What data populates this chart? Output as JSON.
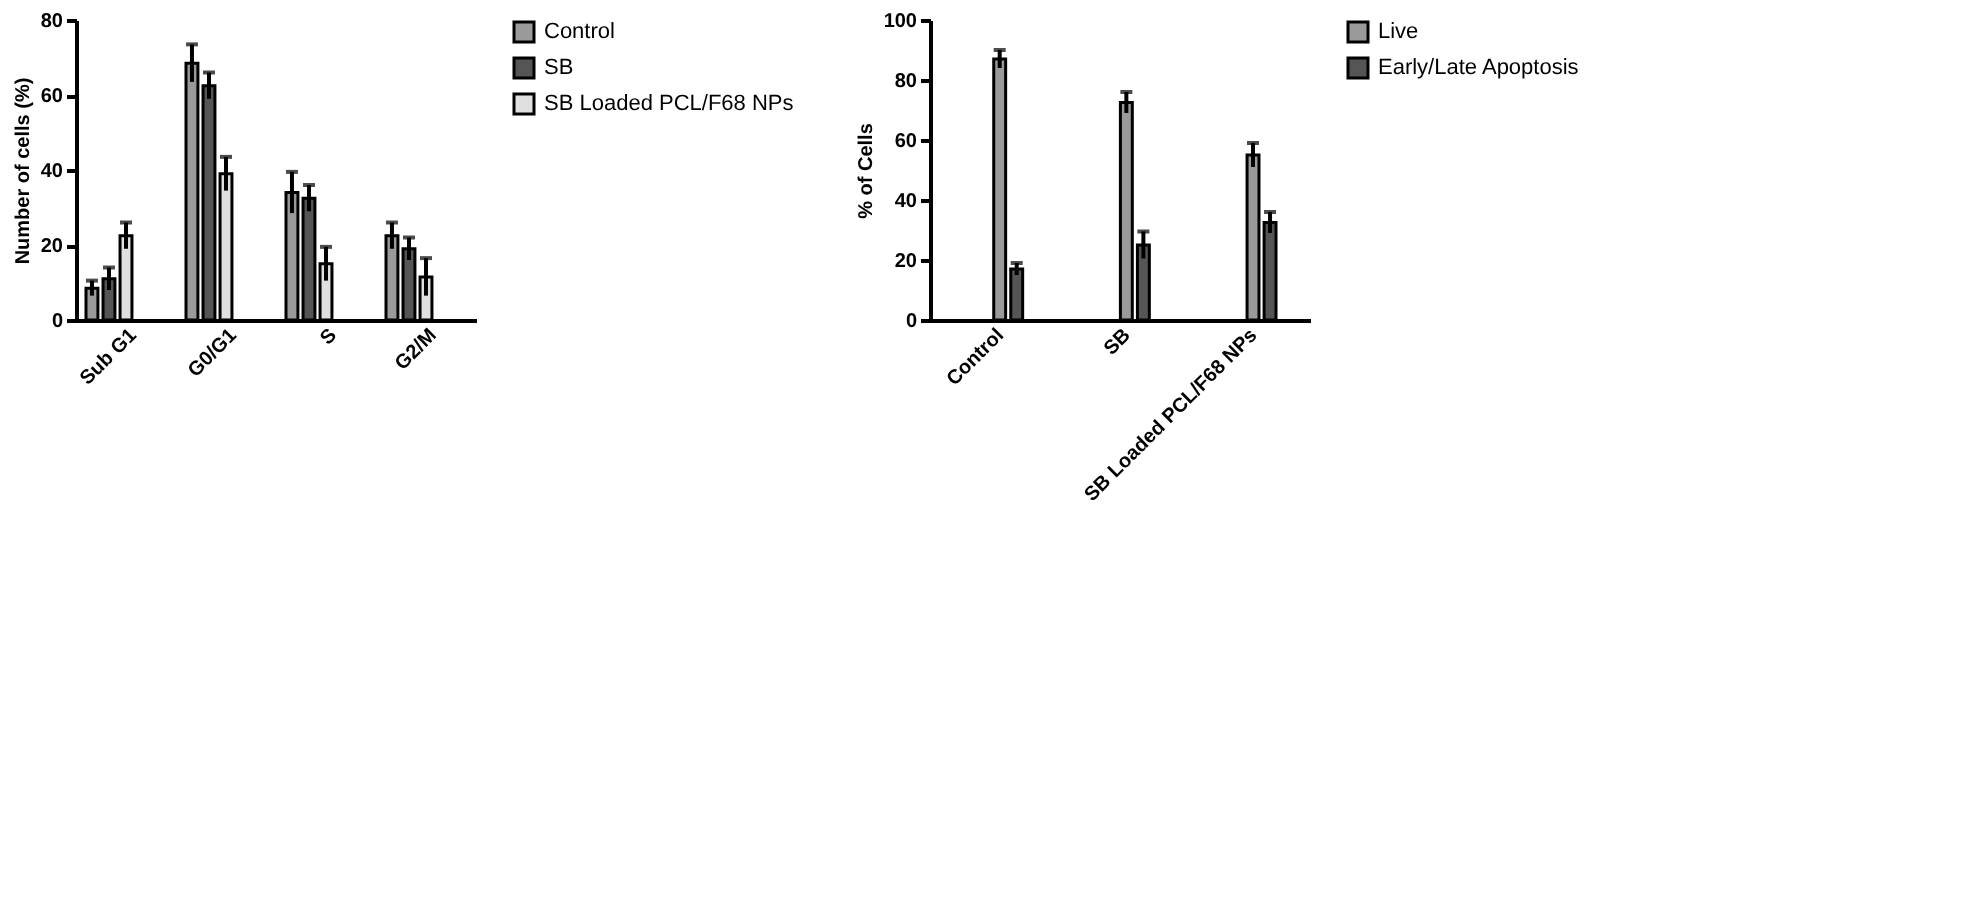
{
  "chart_data": [
    {
      "type": "bar",
      "ylabel": "Number of cells  (%)",
      "categories": [
        "Sub G1",
        "G0/G1",
        "S",
        "G2/M"
      ],
      "ylim": [
        0,
        80
      ],
      "yticks": [
        0,
        20,
        40,
        60,
        80
      ],
      "grid": false,
      "legend": "right",
      "series": [
        {
          "name": "Control",
          "color": "#9a9a9a",
          "values": [
            8.5,
            68.5,
            34,
            22.5
          ],
          "errors": [
            2,
            5,
            5.5,
            3.5
          ]
        },
        {
          "name": "SB",
          "color": "#555555",
          "values": [
            11,
            62.5,
            32.5,
            19
          ],
          "errors": [
            3,
            3.5,
            3.5,
            3
          ]
        },
        {
          "name": "SB Loaded PCL/F68 NPs",
          "color": "#e0e0e0",
          "values": [
            22.5,
            39,
            15,
            11.5
          ],
          "errors": [
            3.5,
            4.5,
            4.5,
            5
          ]
        }
      ]
    },
    {
      "type": "bar",
      "ylabel": "% of Cells",
      "categories": [
        "Control",
        "SB",
        "SB Loaded PCL/F68 NPs"
      ],
      "ylim": [
        0,
        100
      ],
      "yticks": [
        0,
        20,
        40,
        60,
        80,
        100
      ],
      "grid": false,
      "legend": "right",
      "series": [
        {
          "name": "Live",
          "color": "#9a9a9a",
          "values": [
            87,
            72.5,
            55
          ],
          "errors": [
            3,
            3.5,
            4
          ]
        },
        {
          "name": "Early/Late Apoptosis",
          "color": "#555555",
          "values": [
            17,
            25,
            32.5
          ],
          "errors": [
            2,
            4.5,
            3.5
          ]
        }
      ]
    }
  ]
}
